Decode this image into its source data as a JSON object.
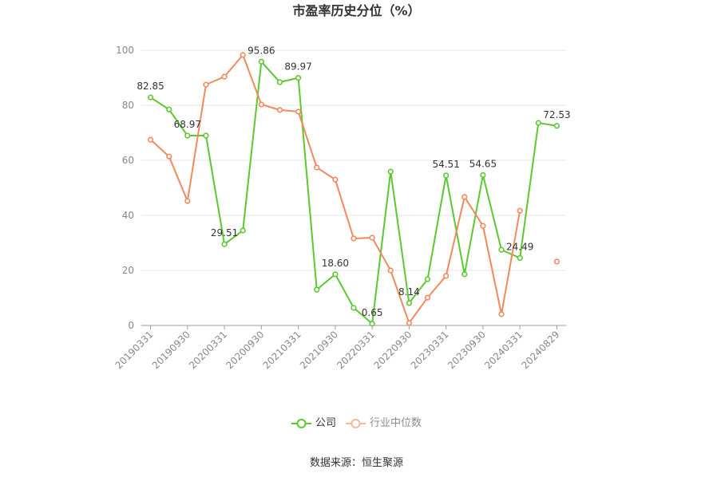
{
  "chart_data": {
    "type": "line",
    "title": "市盈率历史分位（%）",
    "xlabel": "",
    "ylabel": "",
    "categories": [
      "20190331",
      "",
      "20190930",
      "",
      "20200331",
      "",
      "20200930",
      "",
      "20210331",
      "",
      "20210930",
      "",
      "20220331",
      "",
      "20220930",
      "",
      "20230331",
      "",
      "20230930",
      "",
      "20240331",
      "",
      "20240829"
    ],
    "ylim": [
      0,
      100
    ],
    "yticks": [
      0,
      20,
      40,
      60,
      80,
      100
    ],
    "grid": true,
    "legend_position": "bottom-center",
    "series": [
      {
        "name": "公司",
        "color": "#5cc830",
        "legend_color": "#5cc830",
        "legend_text_color": "#333333",
        "show_labels": true,
        "values": [
          82.85,
          78.5,
          68.97,
          69.0,
          29.51,
          34.5,
          95.86,
          88.4,
          89.97,
          13.0,
          18.6,
          6.4,
          0.65,
          55.9,
          8.14,
          16.8,
          54.51,
          18.6,
          54.65,
          27.5,
          24.49,
          73.6,
          72.53
        ]
      },
      {
        "name": "行业中位数",
        "color": "#f2895c",
        "legend_color": "#f6b89c",
        "legend_text_color": "#8c8c8c",
        "show_labels": false,
        "values": [
          67.5,
          61.4,
          45.2,
          87.5,
          90.4,
          98.3,
          80.3,
          78.3,
          77.7,
          57.4,
          53.0,
          31.6,
          31.9,
          20.0,
          0.9,
          10.1,
          18.0,
          46.7,
          36.2,
          4.1,
          41.7,
          null,
          23.2
        ]
      }
    ]
  },
  "footer": {
    "source": "数据来源：恒生聚源"
  }
}
